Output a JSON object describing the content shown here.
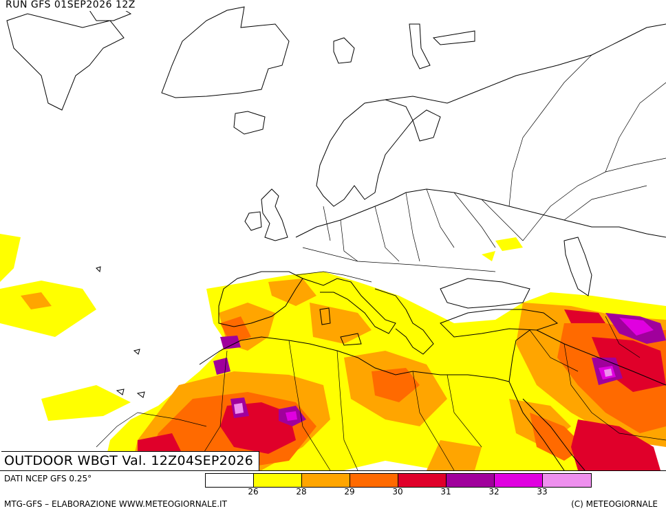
{
  "header": {
    "run_title": "RUN GFS 01SEP2026 12Z"
  },
  "map": {
    "valid_label": "OUTDOOR WBGT Val. 12Z04SEP2026",
    "colors": {
      "land_line": "#000000",
      "background": "#ffffff"
    }
  },
  "footer": {
    "data_source": "DATI NCEP GFS 0.25°",
    "credit_left": "MTG-GFS – ELABORAZIONE WWW.METEOGIORNALE.IT",
    "credit_right": "(C) METEOGIORNALE"
  },
  "legend": {
    "swatches": [
      "#ffffff",
      "#ffff00",
      "#ffa500",
      "#ff6a00",
      "#e0002a",
      "#a0009c",
      "#e000e0",
      "#ee90ee"
    ],
    "tick_labels": [
      "26",
      "28",
      "29",
      "30",
      "31",
      "32",
      "33"
    ]
  }
}
